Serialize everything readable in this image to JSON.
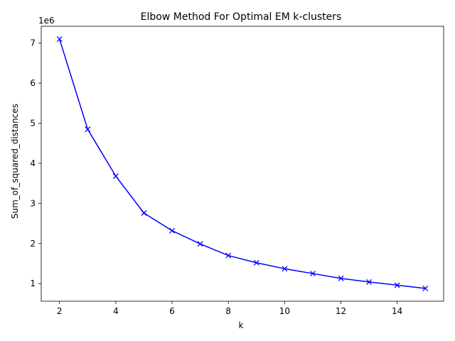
{
  "chart_data": {
    "type": "line",
    "title": "Elbow Method For Optimal EM k-clusters",
    "xlabel": "k",
    "ylabel": "Sum_of_squared_distances",
    "y_offset_label": "1e6",
    "x": [
      2,
      3,
      4,
      5,
      6,
      7,
      8,
      9,
      10,
      11,
      12,
      13,
      14,
      15
    ],
    "series": [
      {
        "values": [
          7.1,
          4.85,
          3.68,
          2.76,
          2.32,
          1.99,
          1.7,
          1.52,
          1.37,
          1.25,
          1.13,
          1.04,
          0.96,
          0.88
        ],
        "color": "#0000ff",
        "marker": "x"
      }
    ],
    "xlim": [
      1.35,
      15.65
    ],
    "ylim": [
      0.56,
      7.42
    ],
    "x_ticks": [
      "2",
      "4",
      "6",
      "8",
      "10",
      "12",
      "14"
    ],
    "x_tick_values": [
      2,
      4,
      6,
      8,
      10,
      12,
      14
    ],
    "y_ticks": [
      "1",
      "2",
      "3",
      "4",
      "5",
      "6",
      "7"
    ],
    "y_tick_values": [
      1,
      2,
      3,
      4,
      5,
      6,
      7
    ],
    "grid": false,
    "legend": "none"
  }
}
